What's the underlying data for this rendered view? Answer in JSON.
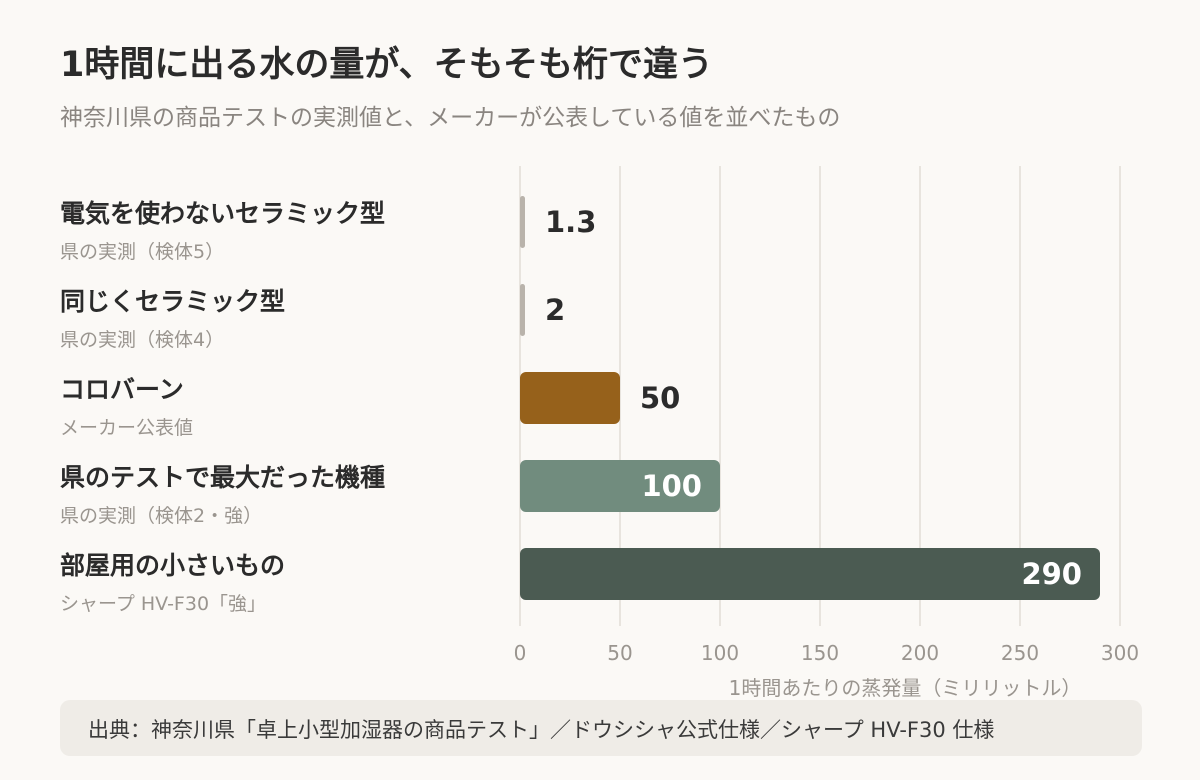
{
  "header": {
    "title": "1時間に出る水の量が、そもそも桁で違う",
    "subtitle": "神奈川県の商品テストの実測値と、メーカーが公表している値を並べたもの"
  },
  "footer": {
    "source": "出典：神奈川県「卓上小型加湿器の商品テスト」／ドウシシャ公式仕様／シャープ HV-F30 仕様"
  },
  "chart_data": {
    "type": "bar",
    "orientation": "horizontal",
    "categories": [
      "電気を使わないセラミック型",
      "同じくセラミック型",
      "コロバーン",
      "県のテストで最大だった機種",
      "部屋用の小さいもの"
    ],
    "sublabels": [
      "県の実測（検体5）",
      "県の実測（検体4）",
      "メーカー公表値",
      "県の実測（検体2・強）",
      "シャープ HV-F30「強」"
    ],
    "values": [
      1.3,
      2,
      50,
      100,
      290
    ],
    "value_labels": [
      "1.3",
      "2",
      "50",
      "100",
      "290"
    ],
    "colors": [
      "#b9b3ab",
      "#b9b3ab",
      "#96611b",
      "#718c7e",
      "#4b5b52"
    ],
    "xlim": [
      0,
      300
    ],
    "xticks": [
      0,
      50,
      100,
      150,
      200,
      250,
      300
    ],
    "xlabel": "1時間あたりの蒸発量（ミリリットル）",
    "grid": true
  }
}
